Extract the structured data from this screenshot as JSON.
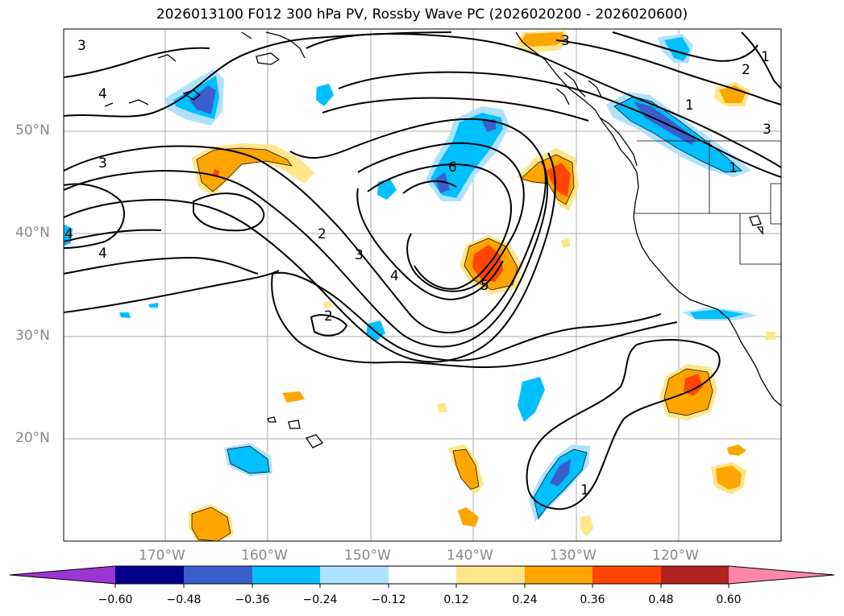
{
  "title": "2026013100 F012 300 hPa PV, Rossby Wave PC (2026020200 - 2026020600)",
  "map": {
    "lat_labels": [
      "50°N",
      "40°N",
      "30°N",
      "20°N"
    ],
    "lon_labels": [
      "170°W",
      "160°W",
      "150°W",
      "140°W",
      "130°W",
      "120°W"
    ]
  },
  "contour_labels": [
    "3",
    "4",
    "3",
    "4",
    "2",
    "3",
    "4",
    "5",
    "6",
    "2",
    "1",
    "2",
    "3",
    "1",
    "1",
    "4",
    "1",
    "3"
  ],
  "colorbar": {
    "ticks": [
      "−0.60",
      "−0.48",
      "−0.36",
      "−0.24",
      "−0.12",
      "0.12",
      "0.24",
      "0.36",
      "0.48",
      "0.60"
    ],
    "colors": [
      "#9a35d0",
      "#00008b",
      "#3a5fcd",
      "#00bfff",
      "#aee2ff",
      "#ffffff",
      "#ffe68a",
      "#ffa500",
      "#ff4500",
      "#b22222",
      "#ff88aa"
    ]
  }
}
